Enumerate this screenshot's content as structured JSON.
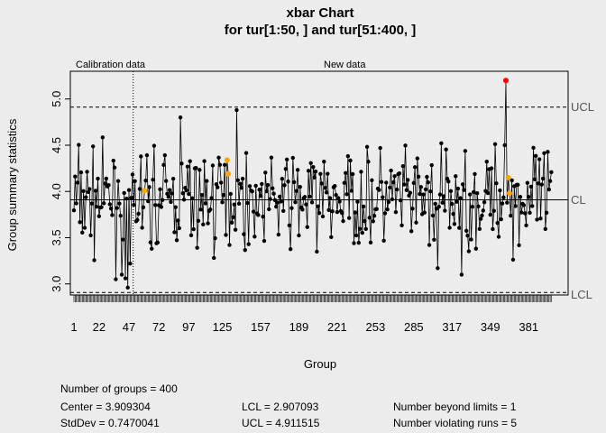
{
  "chart_data": {
    "type": "line",
    "title": "xbar Chart",
    "subtitle": "for tur[1:50, ] and tur[51:400, ]",
    "xlabel": "Group",
    "ylabel": "Group summary statistics",
    "xlim": [
      -2,
      414
    ],
    "ylim": [
      2.88,
      5.3
    ],
    "x_ticks": [
      "1",
      "22",
      "47",
      "72",
      "97",
      "125",
      "157",
      "189",
      "221",
      "253",
      "285",
      "317",
      "349",
      "381"
    ],
    "y_ticks": [
      "3.0",
      "3.5",
      "4.0",
      "4.5",
      "5.0"
    ],
    "calibration_end": 50,
    "phase_labels": {
      "calibration": "Calibration data",
      "new": "New data"
    },
    "n_groups": 400,
    "center": 3.909304,
    "lcl": 2.907093,
    "ucl": 4.911515,
    "limit_labels": {
      "ucl": "UCL",
      "cl": "CL",
      "lcl": "LCL"
    },
    "seed": 7,
    "spread": 0.36,
    "beyond_limits": [
      {
        "x": 362,
        "y": 5.2
      }
    ],
    "violating_runs": [
      {
        "x": 60,
        "y": 4.01
      },
      {
        "x": 129,
        "y": 4.34
      },
      {
        "x": 130,
        "y": 4.19
      },
      {
        "x": 364,
        "y": 4.15
      },
      {
        "x": 365,
        "y": 3.98
      }
    ],
    "fixed_points": [
      {
        "x": 41,
        "y": 3.1
      },
      {
        "x": 44,
        "y": 3.06
      },
      {
        "x": 46,
        "y": 2.96
      },
      {
        "x": 48,
        "y": 3.22
      },
      {
        "x": 137,
        "y": 4.88
      },
      {
        "x": 361,
        "y": 4.5
      },
      {
        "x": 305,
        "y": 3.17
      },
      {
        "x": 325,
        "y": 3.1
      },
      {
        "x": 90,
        "y": 4.8
      }
    ],
    "colors": {
      "point": "#000000",
      "violation": "#FFA500",
      "beyond": "#FF0000",
      "line": "#000000"
    }
  },
  "stats": {
    "groups_text": "Number of groups = 400",
    "center_text": "Center = 3.909304",
    "stddev_text": "StdDev = 0.7470041",
    "lcl_text": "LCL = 2.907093",
    "ucl_text": "UCL = 4.911515",
    "beyond_text": "Number beyond limits = 1",
    "runs_text": "Number violating runs = 5"
  }
}
